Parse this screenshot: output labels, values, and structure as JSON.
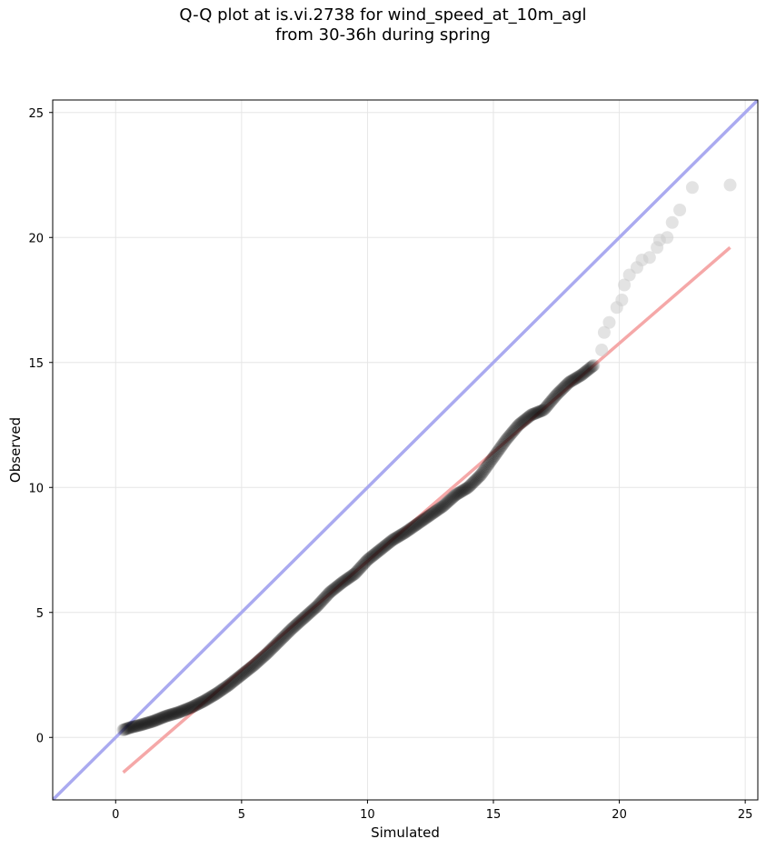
{
  "title_line1": "Q-Q plot at is.vi.2738 for wind_speed_at_10m_agl",
  "title_line2": "from 30-36h during spring",
  "chart_data": {
    "type": "scatter",
    "title": "Q-Q plot at is.vi.2738 for wind_speed_at_10m_agl\nfrom 30-36h during spring",
    "xlabel": "Simulated",
    "ylabel": "Observed",
    "xlim": [
      -2.5,
      25.5
    ],
    "ylim": [
      -2.5,
      25.5
    ],
    "xticks": [
      0,
      5,
      10,
      15,
      20,
      25
    ],
    "yticks": [
      0,
      5,
      10,
      15,
      20,
      25
    ],
    "grid": true,
    "colors": {
      "points": "#000000",
      "identity_line": "#aaaaf0",
      "fit_line": "#f5a8a8",
      "points_fade": "#cccccc"
    },
    "identity_line": {
      "x": [
        -2.5,
        25.5
      ],
      "y": [
        -2.5,
        25.5
      ]
    },
    "fit_line": {
      "x": [
        0.3,
        24.4
      ],
      "y": [
        -1.4,
        19.6
      ]
    },
    "curve_knots": [
      [
        0.3,
        0.3
      ],
      [
        0.6,
        0.4
      ],
      [
        1.0,
        0.5
      ],
      [
        1.5,
        0.65
      ],
      [
        2.0,
        0.85
      ],
      [
        2.5,
        1.0
      ],
      [
        3.0,
        1.2
      ],
      [
        3.5,
        1.45
      ],
      [
        4.0,
        1.75
      ],
      [
        4.5,
        2.1
      ],
      [
        5.0,
        2.5
      ],
      [
        5.5,
        2.9
      ],
      [
        6.0,
        3.35
      ],
      [
        6.5,
        3.85
      ],
      [
        7.0,
        4.35
      ],
      [
        7.5,
        4.8
      ],
      [
        8.0,
        5.25
      ],
      [
        8.5,
        5.8
      ],
      [
        9.0,
        6.2
      ],
      [
        9.5,
        6.55
      ],
      [
        10.0,
        7.1
      ],
      [
        10.5,
        7.5
      ],
      [
        11.0,
        7.9
      ],
      [
        11.5,
        8.2
      ],
      [
        12.0,
        8.55
      ],
      [
        12.5,
        8.9
      ],
      [
        13.0,
        9.25
      ],
      [
        13.5,
        9.7
      ],
      [
        14.0,
        10.0
      ],
      [
        14.5,
        10.5
      ],
      [
        15.0,
        11.2
      ],
      [
        15.5,
        11.9
      ],
      [
        16.0,
        12.5
      ],
      [
        16.5,
        12.9
      ],
      [
        17.0,
        13.1
      ],
      [
        17.5,
        13.7
      ],
      [
        18.0,
        14.2
      ],
      [
        18.5,
        14.5
      ],
      [
        19.0,
        14.9
      ],
      [
        19.2,
        15.8
      ],
      [
        19.5,
        16.9
      ],
      [
        20.0,
        17.4
      ],
      [
        20.3,
        18.4
      ],
      [
        20.6,
        18.9
      ],
      [
        21.0,
        19.2
      ],
      [
        21.4,
        19.4
      ],
      [
        21.7,
        20.0
      ],
      [
        22.0,
        20.1
      ],
      [
        22.2,
        20.7
      ],
      [
        22.5,
        21.1
      ],
      [
        22.9,
        22.0
      ],
      [
        24.4,
        22.1
      ]
    ],
    "tail_points": [
      [
        19.3,
        15.5
      ],
      [
        19.4,
        16.2
      ],
      [
        19.6,
        16.6
      ],
      [
        19.9,
        17.2
      ],
      [
        20.1,
        17.5
      ],
      [
        20.2,
        18.1
      ],
      [
        20.4,
        18.5
      ],
      [
        20.7,
        18.8
      ],
      [
        20.9,
        19.1
      ],
      [
        21.2,
        19.2
      ],
      [
        21.5,
        19.6
      ],
      [
        21.6,
        19.9
      ],
      [
        21.9,
        20.0
      ],
      [
        22.1,
        20.6
      ],
      [
        22.4,
        21.1
      ],
      [
        22.9,
        22.0
      ],
      [
        24.4,
        22.1
      ]
    ]
  }
}
